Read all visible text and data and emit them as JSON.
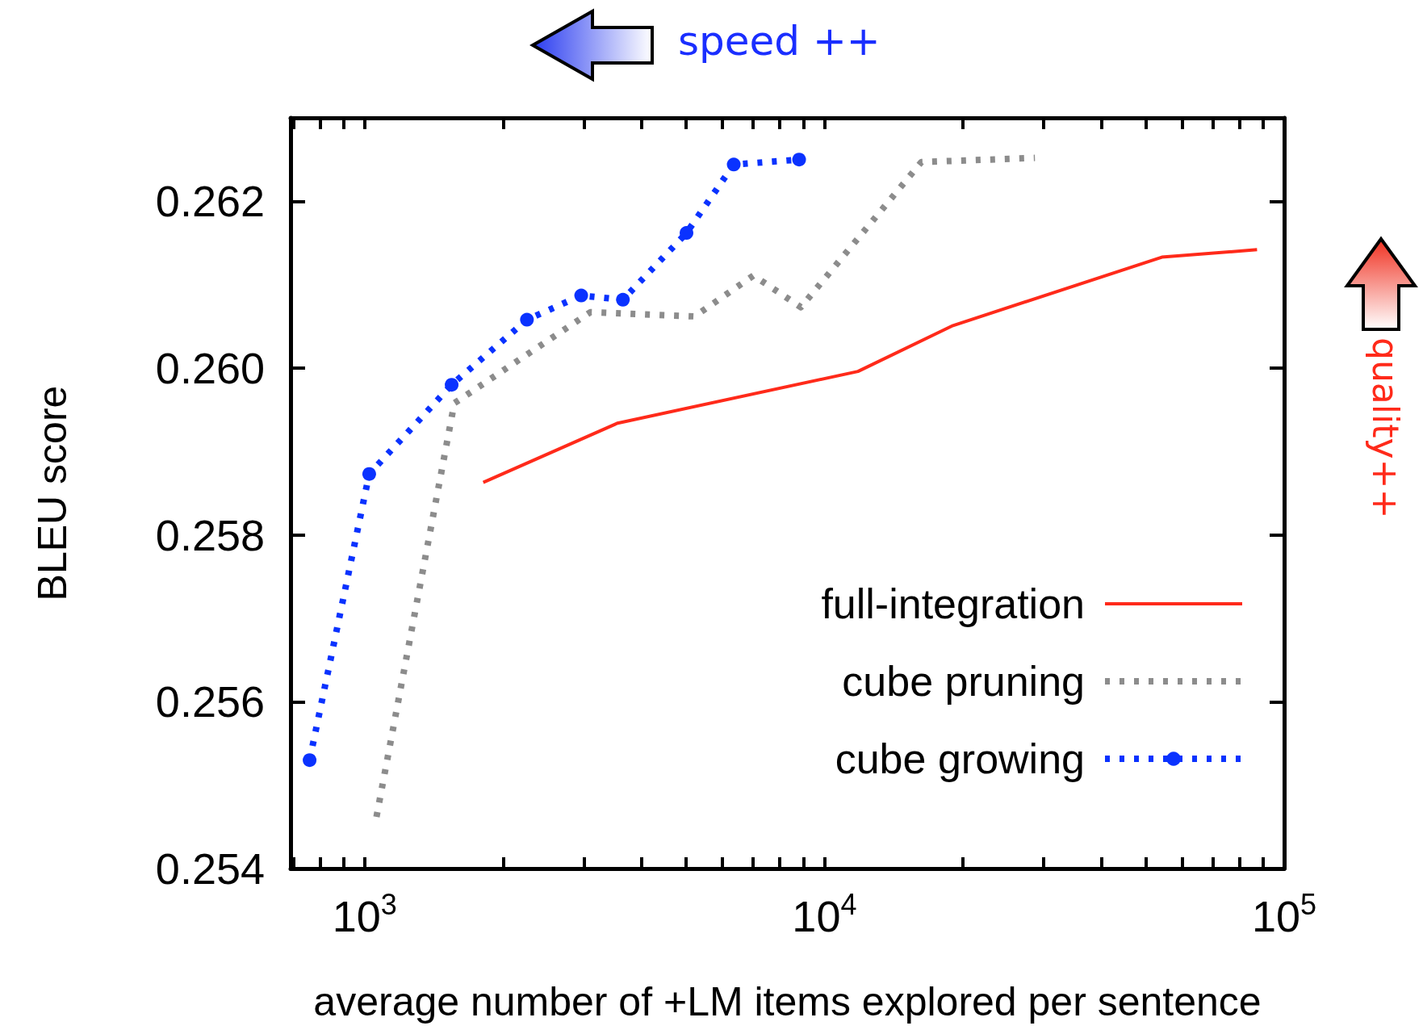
{
  "chart_data": {
    "type": "line",
    "xlabel": "average number of +LM items explored per sentence",
    "ylabel": "BLEU score",
    "log": "x",
    "xlim": [
      690,
      100000
    ],
    "xticks": [
      {
        "value": 700,
        "label": null
      },
      {
        "value": 800,
        "label": null
      },
      {
        "value": 900,
        "label": null
      },
      {
        "value": 1000,
        "label": "10$^{3}$"
      },
      {
        "value": 2000,
        "label": null
      },
      {
        "value": 3000,
        "label": null
      },
      {
        "value": 4000,
        "label": null
      },
      {
        "value": 5000,
        "label": null
      },
      {
        "value": 6000,
        "label": null
      },
      {
        "value": 7000,
        "label": null
      },
      {
        "value": 8000,
        "label": null
      },
      {
        "value": 9000,
        "label": null
      },
      {
        "value": 10000,
        "label": "10$^{4}$"
      },
      {
        "value": 20000,
        "label": null
      },
      {
        "value": 30000,
        "label": null
      },
      {
        "value": 40000,
        "label": null
      },
      {
        "value": 50000,
        "label": null
      },
      {
        "value": 60000,
        "label": null
      },
      {
        "value": 70000,
        "label": null
      },
      {
        "value": 80000,
        "label": null
      },
      {
        "value": 90000,
        "label": null
      },
      {
        "value": 100000,
        "label": "10$^{5}$"
      }
    ],
    "ylim": [
      0.254,
      0.263
    ],
    "yticks": [
      0.254,
      0.256,
      0.258,
      {
        "value": 0.26,
        "label": "0.260"
      },
      0.262
    ],
    "grid": false,
    "legend": "bottom right",
    "series": [
      {
        "name": "full-integration",
        "color": "#ff2a1a",
        "line_style": "solid",
        "marker": "none",
        "x": [
          1811,
          3550,
          11830,
          19040,
          54200,
          87300
        ],
        "values": [
          0.25863,
          0.25934,
          0.25996,
          0.26051,
          0.26133,
          0.26142
        ]
      },
      {
        "name": "cube pruning",
        "color": "#8c8c8c",
        "line_style": "dotted",
        "marker": "none",
        "x": [
          1061,
          1567,
          3097,
          5220,
          7010,
          8890,
          16250,
          28700
        ],
        "values": [
          0.25462,
          0.25958,
          0.26067,
          0.26062,
          0.26111,
          0.26073,
          0.26247,
          0.26252
        ]
      },
      {
        "name": "cube growing",
        "color": "#0a32ff",
        "line_style": "dotted",
        "marker": "circle",
        "x": [
          759,
          1023,
          1546,
          2254,
          2958,
          3645,
          5012,
          6350,
          8810
        ],
        "values": [
          0.2553,
          0.25873,
          0.2598,
          0.26058,
          0.26087,
          0.26082,
          0.26162,
          0.26244,
          0.2625
        ]
      }
    ],
    "annotations": [
      "speed ++",
      "quality++"
    ]
  }
}
